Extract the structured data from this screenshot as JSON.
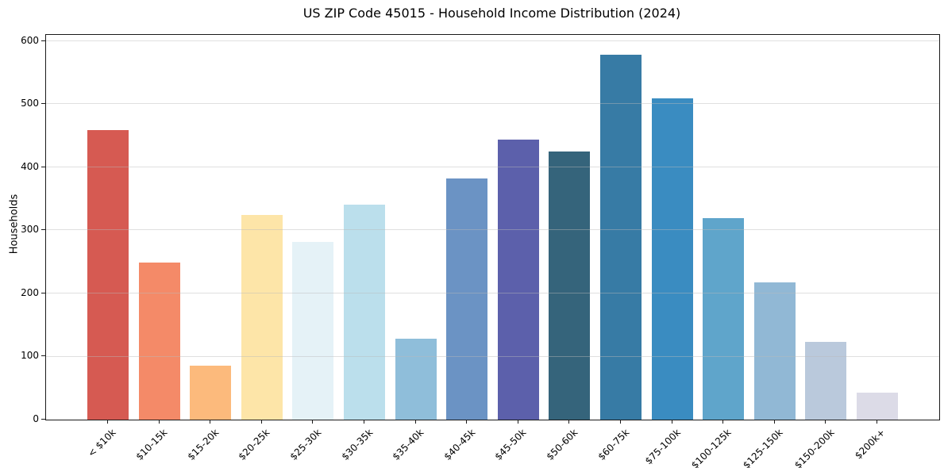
{
  "chart_data": {
    "type": "bar",
    "title": "US ZIP Code 45015 - Household Income Distribution (2024)",
    "xlabel": "",
    "ylabel": "Households",
    "categories": [
      "< $10k",
      "$10-15k",
      "$15-20k",
      "$20-25k",
      "$25-30k",
      "$30-35k",
      "$35-40k",
      "$40-45k",
      "$45-50k",
      "$50-60k",
      "$60-75k",
      "$75-100k",
      "$100-125k",
      "$125-150k",
      "$150-200k",
      "$200k+"
    ],
    "values": [
      459,
      249,
      85,
      324,
      282,
      341,
      128,
      382,
      444,
      425,
      578,
      510,
      320,
      218,
      123,
      43
    ],
    "bar_colors": [
      "#d65a52",
      "#f48a68",
      "#fcba7c",
      "#fde5a8",
      "#e5f2f7",
      "#bbdfec",
      "#8fbeda",
      "#6b93c4",
      "#5c60ab",
      "#35647b",
      "#377ba5",
      "#3a8cc1",
      "#5fa5cb",
      "#91b8d5",
      "#bac9dc",
      "#dcdbe7"
    ],
    "yticks": [
      0,
      100,
      200,
      300,
      400,
      500,
      600
    ],
    "ylim": [
      0,
      610
    ],
    "grid": true,
    "legend": false
  }
}
